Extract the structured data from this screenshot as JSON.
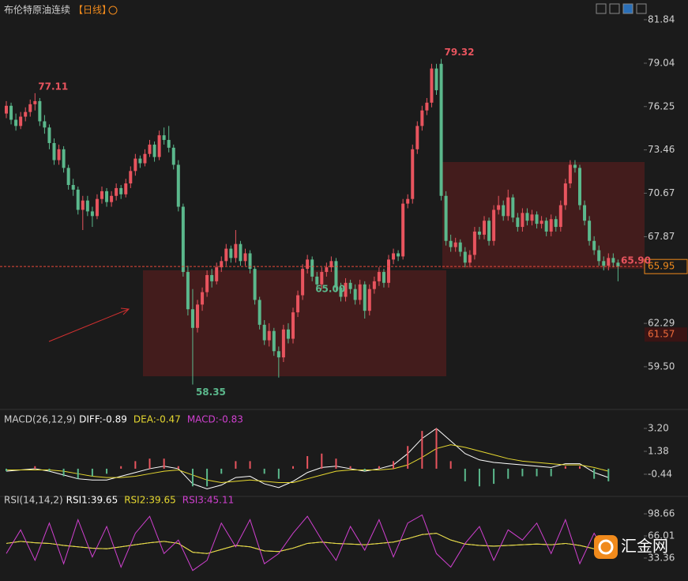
{
  "chart_data": [
    {
      "type": "candlestick",
      "title": "布伦特原油连续",
      "period": "【日线】",
      "up_color": "#e8545e",
      "down_color": "#5bb88c",
      "ylim": [
        56.9,
        83.11
      ],
      "yticks": [
        81.84,
        79.04,
        76.25,
        73.46,
        70.67,
        67.87,
        62.29,
        {
          "value": 59.5,
          "label": "59.50"
        }
      ],
      "candles": [
        [
          75.8,
          76.6,
          75.5,
          76.3
        ],
        [
          76.3,
          76.5,
          75.1,
          75.4
        ],
        [
          75.4,
          75.8,
          74.7,
          75.0
        ],
        [
          75.0,
          75.9,
          74.8,
          75.6
        ],
        [
          75.6,
          76.2,
          75.3,
          75.9
        ],
        [
          75.9,
          76.7,
          75.6,
          76.4
        ],
        [
          76.4,
          77.11,
          76.0,
          76.6
        ],
        [
          76.6,
          76.8,
          75.0,
          75.3
        ],
        [
          75.3,
          75.7,
          74.5,
          74.9
        ],
        [
          74.9,
          75.1,
          73.5,
          73.9
        ],
        [
          73.9,
          74.2,
          72.5,
          72.8
        ],
        [
          72.8,
          73.8,
          72.5,
          73.5
        ],
        [
          73.5,
          73.7,
          72.0,
          72.3
        ],
        [
          72.3,
          72.5,
          70.9,
          71.2
        ],
        [
          71.2,
          71.6,
          70.5,
          70.9
        ],
        [
          70.9,
          71.1,
          69.3,
          69.6
        ],
        [
          69.6,
          70.5,
          68.3,
          70.2
        ],
        [
          70.2,
          70.5,
          69.2,
          69.5
        ],
        [
          69.5,
          69.8,
          68.5,
          69.2
        ],
        [
          69.2,
          70.6,
          69.0,
          70.3
        ],
        [
          70.3,
          71.1,
          70.0,
          70.8
        ],
        [
          70.8,
          71.0,
          69.8,
          70.1
        ],
        [
          70.1,
          70.8,
          69.8,
          70.5
        ],
        [
          70.5,
          71.3,
          70.2,
          71.0
        ],
        [
          71.0,
          71.2,
          70.3,
          70.6
        ],
        [
          70.6,
          71.6,
          70.4,
          71.3
        ],
        [
          71.3,
          72.4,
          71.0,
          72.1
        ],
        [
          72.1,
          73.2,
          71.8,
          72.9
        ],
        [
          72.9,
          73.1,
          72.3,
          72.6
        ],
        [
          72.6,
          73.5,
          72.4,
          73.2
        ],
        [
          73.2,
          74.1,
          73.0,
          73.8
        ],
        [
          73.8,
          74.0,
          72.7,
          73.0
        ],
        [
          73.0,
          74.7,
          72.8,
          74.4
        ],
        [
          74.4,
          74.9,
          73.8,
          74.1
        ],
        [
          74.1,
          75.0,
          73.3,
          73.6
        ],
        [
          73.6,
          73.8,
          72.2,
          72.5
        ],
        [
          72.5,
          72.8,
          69.5,
          69.8
        ],
        [
          69.8,
          70.0,
          65.3,
          65.6
        ],
        [
          65.6,
          66.0,
          62.8,
          63.2
        ],
        [
          63.2,
          64.5,
          58.35,
          62.0
        ],
        [
          62.0,
          63.8,
          61.7,
          63.5
        ],
        [
          63.5,
          64.6,
          63.1,
          64.3
        ],
        [
          64.3,
          65.7,
          64.0,
          65.4
        ],
        [
          65.4,
          65.8,
          64.6,
          65.0
        ],
        [
          65.0,
          66.2,
          64.8,
          65.9
        ],
        [
          65.9,
          66.6,
          65.6,
          66.3
        ],
        [
          66.3,
          67.4,
          66.0,
          67.1
        ],
        [
          67.1,
          67.3,
          66.2,
          66.5
        ],
        [
          66.5,
          68.3,
          66.2,
          67.4
        ],
        [
          67.4,
          67.6,
          66.0,
          66.3
        ],
        [
          66.3,
          67.1,
          66.0,
          66.8
        ],
        [
          66.8,
          67.0,
          65.5,
          65.8
        ],
        [
          65.8,
          66.0,
          63.5,
          63.8
        ],
        [
          63.8,
          64.0,
          61.9,
          62.2
        ],
        [
          62.2,
          62.5,
          60.9,
          61.2
        ],
        [
          61.2,
          62.3,
          60.8,
          61.8
        ],
        [
          61.8,
          62.0,
          60.2,
          60.5
        ],
        [
          60.5,
          60.8,
          58.8,
          60.1
        ],
        [
          60.1,
          62.2,
          59.8,
          61.9
        ],
        [
          61.9,
          62.3,
          61.0,
          61.3
        ],
        [
          61.3,
          63.3,
          61.0,
          63.0
        ],
        [
          63.0,
          64.4,
          62.7,
          64.1
        ],
        [
          64.1,
          66.1,
          63.8,
          65.8
        ],
        [
          65.8,
          66.7,
          65.5,
          66.4
        ],
        [
          66.4,
          66.6,
          65.0,
          65.3
        ],
        [
          65.3,
          65.6,
          64.5,
          64.8
        ],
        [
          64.8,
          65.9,
          64.5,
          65.6
        ],
        [
          65.6,
          66.2,
          65.3,
          65.9
        ],
        [
          65.9,
          66.6,
          65.6,
          66.3
        ],
        [
          66.3,
          66.5,
          64.3,
          64.6
        ],
        [
          64.6,
          64.9,
          63.7,
          64.0
        ],
        [
          64.0,
          65.2,
          63.7,
          64.9
        ],
        [
          64.9,
          65.1,
          64.2,
          64.5
        ],
        [
          64.5,
          64.8,
          63.5,
          63.8
        ],
        [
          63.8,
          65.1,
          63.5,
          64.8
        ],
        [
          64.8,
          65.0,
          62.6,
          63.1
        ],
        [
          63.1,
          64.8,
          62.8,
          64.5
        ],
        [
          64.5,
          65.3,
          64.2,
          65.0
        ],
        [
          65.0,
          65.9,
          64.7,
          65.6
        ],
        [
          65.6,
          65.8,
          64.6,
          64.9
        ],
        [
          64.9,
          66.7,
          64.6,
          66.4
        ],
        [
          66.4,
          67.1,
          66.1,
          66.8
        ],
        [
          66.8,
          67.0,
          66.3,
          66.6
        ],
        [
          66.6,
          70.3,
          66.4,
          70.0
        ],
        [
          70.0,
          70.6,
          69.7,
          70.3
        ],
        [
          70.3,
          73.8,
          70.0,
          73.5
        ],
        [
          73.5,
          75.3,
          73.2,
          75.0
        ],
        [
          75.0,
          76.3,
          74.7,
          76.0
        ],
        [
          76.0,
          76.8,
          75.7,
          76.5
        ],
        [
          76.5,
          79.0,
          76.2,
          78.7
        ],
        [
          78.7,
          79.0,
          77.0,
          77.3
        ],
        [
          79.0,
          79.32,
          70.2,
          70.5
        ],
        [
          70.5,
          70.8,
          67.3,
          67.6
        ],
        [
          67.6,
          68.0,
          66.9,
          67.2
        ],
        [
          67.2,
          67.8,
          66.9,
          67.5
        ],
        [
          67.5,
          67.7,
          66.6,
          66.9
        ],
        [
          66.9,
          67.2,
          65.9,
          66.2
        ],
        [
          66.2,
          67.0,
          65.9,
          66.7
        ],
        [
          66.7,
          68.5,
          66.4,
          68.2
        ],
        [
          68.2,
          68.5,
          67.7,
          68.0
        ],
        [
          68.0,
          69.2,
          67.7,
          68.9
        ],
        [
          68.9,
          69.1,
          67.3,
          67.6
        ],
        [
          67.6,
          69.9,
          67.3,
          69.6
        ],
        [
          69.6,
          70.5,
          69.3,
          69.9
        ],
        [
          69.9,
          70.2,
          68.9,
          69.2
        ],
        [
          69.2,
          70.9,
          68.9,
          70.4
        ],
        [
          70.4,
          70.6,
          68.8,
          69.1
        ],
        [
          69.1,
          69.4,
          68.2,
          68.5
        ],
        [
          68.5,
          69.7,
          68.2,
          69.4
        ],
        [
          69.4,
          69.7,
          68.6,
          68.9
        ],
        [
          68.9,
          69.6,
          68.6,
          69.3
        ],
        [
          69.3,
          69.5,
          68.4,
          68.7
        ],
        [
          68.7,
          69.2,
          68.4,
          68.9
        ],
        [
          68.9,
          69.1,
          67.9,
          68.2
        ],
        [
          68.2,
          69.3,
          67.9,
          69.0
        ],
        [
          69.0,
          69.2,
          68.2,
          68.5
        ],
        [
          68.5,
          70.2,
          68.2,
          69.9
        ],
        [
          69.9,
          71.6,
          69.6,
          71.3
        ],
        [
          71.3,
          72.8,
          71.0,
          72.5
        ],
        [
          72.5,
          72.8,
          72.0,
          72.3
        ],
        [
          72.3,
          72.5,
          69.6,
          69.9
        ],
        [
          69.9,
          70.2,
          68.6,
          68.9
        ],
        [
          68.9,
          69.2,
          67.3,
          67.6
        ],
        [
          67.6,
          67.9,
          66.7,
          67.0
        ],
        [
          67.0,
          67.3,
          66.0,
          66.3
        ],
        [
          66.3,
          66.6,
          65.7,
          66.0
        ],
        [
          66.0,
          66.8,
          65.7,
          66.5
        ],
        [
          66.5,
          66.8,
          65.9,
          66.2
        ],
        [
          66.2,
          66.4,
          65.0,
          65.95
        ]
      ],
      "annotations": [
        {
          "label": "77.11",
          "value": 77.11,
          "at": "high",
          "color": "#e8545e"
        },
        {
          "label": "79.32",
          "value": 79.32,
          "at": "high",
          "color": "#e8545e"
        },
        {
          "label": "58.35",
          "value": 58.35,
          "at": "low",
          "color": "#5bb88c"
        },
        {
          "label": "65.00",
          "value": 65.0,
          "at": "low",
          "color": "#5bb88c"
        }
      ],
      "price_labels": [
        {
          "label": "65.95",
          "value": 65.95,
          "style": "current"
        },
        {
          "label": "61.57",
          "value": 61.57,
          "style": "marker"
        },
        {
          "label": "65.90",
          "value": 65.9,
          "style": "tag"
        }
      ]
    },
    {
      "type": "macd",
      "title": "MACD(26,12,9)",
      "up_color": "#e8545e",
      "down_color": "#5bb88c",
      "ylim": [
        -2.2,
        3.95
      ],
      "yticks": [
        {
          "value": 3.2,
          "label": "3.20"
        },
        1.38,
        -0.44
      ],
      "x": [
        0,
        3,
        6,
        9,
        12,
        15,
        18,
        21,
        24,
        27,
        30,
        33,
        36,
        39,
        42,
        45,
        48,
        51,
        54,
        57,
        60,
        63,
        66,
        69,
        72,
        75,
        78,
        81,
        84,
        87,
        90,
        93,
        96,
        99,
        102,
        105,
        108,
        111,
        114,
        117,
        120,
        123,
        126
      ],
      "series": [
        {
          "name": "DIFF:-0.89",
          "color": "#ffffff",
          "values": [
            -0.2,
            -0.1,
            0.0,
            -0.2,
            -0.5,
            -0.8,
            -0.9,
            -0.9,
            -0.6,
            -0.3,
            0.0,
            0.2,
            0.0,
            -1.2,
            -1.6,
            -1.3,
            -0.7,
            -0.6,
            -1.2,
            -1.5,
            -1.0,
            -0.3,
            0.1,
            0.2,
            0.0,
            -0.2,
            0.0,
            0.3,
            1.2,
            2.4,
            3.2,
            2.2,
            1.2,
            0.7,
            0.5,
            0.4,
            0.3,
            0.2,
            0.1,
            0.4,
            0.4,
            -0.3,
            -0.7
          ]
        },
        {
          "name": "DEA:-0.47",
          "color": "#e6d830",
          "values": [
            -0.1,
            -0.1,
            -0.1,
            -0.1,
            -0.2,
            -0.4,
            -0.6,
            -0.7,
            -0.7,
            -0.6,
            -0.4,
            -0.2,
            -0.1,
            -0.5,
            -0.9,
            -1.1,
            -1.0,
            -0.9,
            -1.0,
            -1.1,
            -1.1,
            -0.8,
            -0.5,
            -0.2,
            -0.1,
            -0.1,
            -0.1,
            0.0,
            0.3,
            0.9,
            1.6,
            1.9,
            1.7,
            1.4,
            1.1,
            0.8,
            0.6,
            0.5,
            0.4,
            0.3,
            0.3,
            0.1,
            -0.2
          ]
        },
        {
          "name": "MACD:-0.83",
          "color": "#d040d0",
          "style": "histogram",
          "values": [
            -0.2,
            0.0,
            0.2,
            -0.2,
            -0.6,
            -0.8,
            -0.6,
            -0.4,
            0.2,
            0.6,
            0.8,
            0.8,
            0.2,
            -1.4,
            -1.4,
            -0.4,
            0.6,
            0.6,
            -0.4,
            -0.8,
            0.2,
            1.0,
            1.2,
            0.8,
            0.2,
            -0.2,
            0.2,
            0.6,
            1.8,
            3.0,
            3.2,
            0.6,
            -1.0,
            -1.4,
            -1.2,
            -0.8,
            -0.6,
            -0.6,
            -0.6,
            0.2,
            0.2,
            -0.8,
            -1.0
          ]
        }
      ]
    },
    {
      "type": "rsi",
      "title": "RSI(14,14,2)",
      "ylim": [
        -0.5,
        119.7
      ],
      "yticks": [
        98.66,
        66.01,
        33.36
      ],
      "x": [
        0,
        3,
        6,
        9,
        12,
        15,
        18,
        21,
        24,
        27,
        30,
        33,
        36,
        39,
        42,
        45,
        48,
        51,
        54,
        57,
        60,
        63,
        66,
        69,
        72,
        75,
        78,
        81,
        84,
        87,
        90,
        93,
        96,
        99,
        102,
        105,
        108,
        111,
        114,
        117,
        120,
        123,
        126
      ],
      "series": [
        {
          "name": "RSI1:39.65",
          "color": "#ffffff",
          "values": [
            55,
            58,
            56,
            55,
            52,
            50,
            48,
            47,
            50,
            53,
            56,
            58,
            55,
            42,
            40,
            46,
            52,
            50,
            44,
            43,
            48,
            55,
            57,
            55,
            54,
            53,
            55,
            57,
            62,
            68,
            70,
            60,
            54,
            52,
            51,
            52,
            53,
            54,
            53,
            55,
            52,
            47,
            43
          ]
        },
        {
          "name": "RSI2:39.65",
          "color": "#e6d830",
          "values": [
            55,
            58,
            56,
            55,
            52,
            50,
            48,
            47,
            50,
            53,
            56,
            58,
            55,
            42,
            40,
            46,
            52,
            50,
            44,
            43,
            48,
            55,
            57,
            55,
            54,
            53,
            55,
            57,
            62,
            68,
            70,
            60,
            54,
            52,
            51,
            52,
            53,
            54,
            53,
            55,
            52,
            47,
            43
          ]
        },
        {
          "name": "RSI3:45.11",
          "color": "#d040d0",
          "values": [
            40,
            75,
            30,
            85,
            25,
            90,
            35,
            80,
            20,
            70,
            95,
            40,
            60,
            15,
            30,
            85,
            50,
            90,
            25,
            40,
            70,
            95,
            60,
            30,
            80,
            45,
            90,
            35,
            85,
            97,
            40,
            20,
            55,
            80,
            30,
            75,
            60,
            85,
            40,
            90,
            25,
            70,
            35
          ]
        }
      ]
    }
  ]
}
